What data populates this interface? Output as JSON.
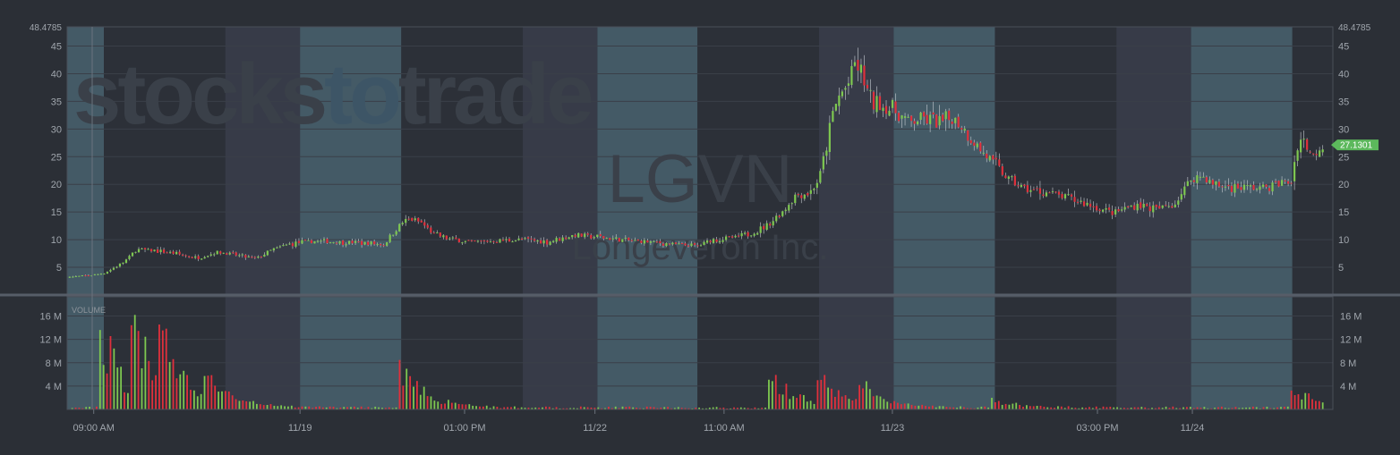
{
  "watermark": {
    "brand_part1": "stocks",
    "brand_part2": "to",
    "brand_part3": "trade",
    "brand_color_main": "#3a4049",
    "brand_color_accent": "#3d5566"
  },
  "ticker": {
    "symbol": "LGVN",
    "company": "Longeveron Inc."
  },
  "price_axis": {
    "max_label": "48.4785",
    "ticks": [
      "5",
      "10",
      "15",
      "20",
      "25",
      "30",
      "35",
      "40",
      "45"
    ],
    "tick_values": [
      5,
      10,
      15,
      20,
      25,
      30,
      35,
      40,
      45
    ],
    "range": [
      0,
      48.4785
    ]
  },
  "last_price": {
    "label": "27.1301",
    "value": 27.1301,
    "color": "#5cb85c"
  },
  "volume_panel": {
    "label": "VOLUME",
    "ticks": [
      "4 M",
      "8 M",
      "12 M",
      "16 M"
    ],
    "tick_values": [
      4,
      8,
      12,
      16
    ],
    "range_m": [
      0,
      19.3
    ]
  },
  "x_axis": {
    "labels": [
      "09:00 AM",
      "11/19",
      "01:00 PM",
      "11/22",
      "11:00 AM",
      "11/23",
      "03:00 PM",
      "11/24"
    ],
    "label_positions": [
      0.021,
      0.184,
      0.314,
      0.417,
      0.519,
      0.652,
      0.814,
      0.889
    ]
  },
  "colors": {
    "up": "#7ec850",
    "down": "#e0303c",
    "session_regular": "#445a66",
    "session_extended": "#373b48",
    "session_night": "#2c3038",
    "grid": "#3a3f48",
    "axis_text": "#a0a6ad"
  },
  "chart_data": {
    "type": "candlestick",
    "ticker": "LGVN",
    "sessions": [
      {
        "type": "regular",
        "span": [
          0.0,
          0.029
        ]
      },
      {
        "type": "night",
        "span": [
          0.029,
          0.125
        ]
      },
      {
        "type": "extended",
        "span": [
          0.125,
          0.184
        ]
      },
      {
        "type": "regular",
        "span": [
          0.184,
          0.264
        ]
      },
      {
        "type": "night",
        "span": [
          0.264,
          0.36
        ]
      },
      {
        "type": "extended",
        "span": [
          0.36,
          0.419
        ]
      },
      {
        "type": "regular",
        "span": [
          0.419,
          0.498
        ]
      },
      {
        "type": "night",
        "span": [
          0.498,
          0.594
        ]
      },
      {
        "type": "extended",
        "span": [
          0.594,
          0.653
        ]
      },
      {
        "type": "regular",
        "span": [
          0.653,
          0.733
        ]
      },
      {
        "type": "night",
        "span": [
          0.733,
          0.829
        ]
      },
      {
        "type": "extended",
        "span": [
          0.829,
          0.888
        ]
      },
      {
        "type": "regular",
        "span": [
          0.888,
          0.968
        ]
      },
      {
        "type": "night",
        "span": [
          0.968,
          1.0
        ]
      }
    ],
    "price_path": [
      [
        0.0,
        3.2
      ],
      [
        0.02,
        3.6
      ],
      [
        0.03,
        4.0
      ],
      [
        0.045,
        6.0
      ],
      [
        0.055,
        8.2
      ],
      [
        0.07,
        8.0
      ],
      [
        0.085,
        7.5
      ],
      [
        0.1,
        6.7
      ],
      [
        0.11,
        7.1
      ],
      [
        0.118,
        7.8
      ],
      [
        0.125,
        7.6
      ],
      [
        0.14,
        6.9
      ],
      [
        0.15,
        6.6
      ],
      [
        0.16,
        8.0
      ],
      [
        0.175,
        9.2
      ],
      [
        0.184,
        9.5
      ],
      [
        0.195,
        9.7
      ],
      [
        0.21,
        9.6
      ],
      [
        0.225,
        9.5
      ],
      [
        0.24,
        9.3
      ],
      [
        0.25,
        9.1
      ],
      [
        0.264,
        13.0
      ],
      [
        0.272,
        13.8
      ],
      [
        0.28,
        13.0
      ],
      [
        0.29,
        11.0
      ],
      [
        0.3,
        10.2
      ],
      [
        0.32,
        9.5
      ],
      [
        0.34,
        9.8
      ],
      [
        0.36,
        10.0
      ],
      [
        0.38,
        9.6
      ],
      [
        0.4,
        10.8
      ],
      [
        0.419,
        10.5
      ],
      [
        0.44,
        9.9
      ],
      [
        0.46,
        9.6
      ],
      [
        0.48,
        9.2
      ],
      [
        0.498,
        8.8
      ],
      [
        0.51,
        10.0
      ],
      [
        0.53,
        10.5
      ],
      [
        0.545,
        11.5
      ],
      [
        0.555,
        13.0
      ],
      [
        0.565,
        15.0
      ],
      [
        0.575,
        18.0
      ],
      [
        0.587,
        18.5
      ],
      [
        0.594,
        21.0
      ],
      [
        0.6,
        27.0
      ],
      [
        0.605,
        33.0
      ],
      [
        0.61,
        36.0
      ],
      [
        0.617,
        38.0
      ],
      [
        0.622,
        42.0
      ],
      [
        0.628,
        40.0
      ],
      [
        0.635,
        35.0
      ],
      [
        0.645,
        34.0
      ],
      [
        0.653,
        33.5
      ],
      [
        0.665,
        31.0
      ],
      [
        0.675,
        32.0
      ],
      [
        0.69,
        31.0
      ],
      [
        0.7,
        32.0
      ],
      [
        0.71,
        29.5
      ],
      [
        0.72,
        26.5
      ],
      [
        0.733,
        23.5
      ],
      [
        0.745,
        20.5
      ],
      [
        0.76,
        19.0
      ],
      [
        0.775,
        18.5
      ],
      [
        0.79,
        17.5
      ],
      [
        0.805,
        16.5
      ],
      [
        0.82,
        15.2
      ],
      [
        0.829,
        15.0
      ],
      [
        0.845,
        16.5
      ],
      [
        0.86,
        15.5
      ],
      [
        0.875,
        16.5
      ],
      [
        0.888,
        21.0
      ],
      [
        0.897,
        21.5
      ],
      [
        0.905,
        20.0
      ],
      [
        0.92,
        19.5
      ],
      [
        0.94,
        19.3
      ],
      [
        0.955,
        20.0
      ],
      [
        0.968,
        20.5
      ],
      [
        0.975,
        20.2
      ],
      [
        0.985,
        19.8
      ],
      [
        0.99,
        18.8
      ],
      [
        0.995,
        19.8
      ],
      [
        1.0,
        20.0
      ]
    ],
    "post_gap_path": [
      [
        0.0,
        19.5
      ],
      [
        0.1,
        26.0
      ],
      [
        0.3,
        28.5
      ],
      [
        0.5,
        26.5
      ],
      [
        0.7,
        25.0
      ],
      [
        0.9,
        26.8
      ],
      [
        1.0,
        27.1
      ]
    ],
    "volume_bursts": [
      {
        "at": 0.029,
        "peak_m": 17.0
      },
      {
        "at": 0.053,
        "peak_m": 16.0
      },
      {
        "at": 0.075,
        "peak_m": 12.0
      },
      {
        "at": 0.11,
        "peak_m": 7.5
      },
      {
        "at": 0.264,
        "peak_m": 10.5
      },
      {
        "at": 0.558,
        "peak_m": 7.5
      },
      {
        "at": 0.595,
        "peak_m": 6.5
      },
      {
        "at": 0.629,
        "peak_m": 4.2
      },
      {
        "at": 0.733,
        "peak_m": 1.8
      },
      {
        "at": 0.97,
        "peak_m": 4.5
      }
    ],
    "ylim": [
      0,
      48.4785
    ],
    "volume_ylim_m": [
      0,
      19.3
    ],
    "last": 27.1301
  }
}
